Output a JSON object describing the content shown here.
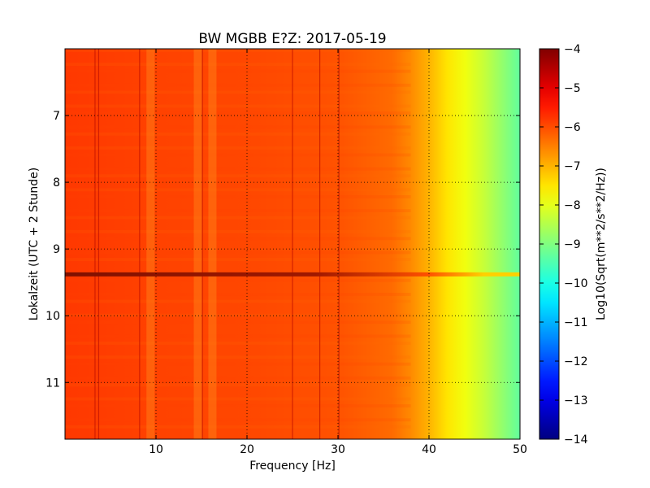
{
  "chart_data": {
    "type": "heatmap",
    "title": "BW MGBB E?Z: 2017-05-19",
    "xlabel": "Frequency [Hz]",
    "ylabel": "Lokalzeit (UTC + 2 Stunde)",
    "colorbar_label": "Log10(Sqrt(m**2/s**2/Hz))",
    "colormap": "jet",
    "xlim": [
      0,
      50
    ],
    "ylim": [
      11.85,
      6.0
    ],
    "y_inverted": true,
    "clim": [
      -14,
      -4
    ],
    "grid": true,
    "x_ticks": [
      10,
      20,
      30,
      40,
      50
    ],
    "x_tick_labels": [
      "10",
      "20",
      "30",
      "40",
      "50"
    ],
    "y_ticks": [
      7,
      8,
      9,
      10,
      11
    ],
    "y_tick_labels": [
      "7",
      "8",
      "9",
      "10",
      "11"
    ],
    "colorbar_ticks": [
      -4,
      -5,
      -6,
      -7,
      -8,
      -9,
      -10,
      -11,
      -12,
      -13,
      -14
    ],
    "colorbar_tick_labels": [
      "−4",
      "−5",
      "−6",
      "−7",
      "−8",
      "−9",
      "−10",
      "−11",
      "−12",
      "−13",
      "−14"
    ],
    "spectral_profile": {
      "frequency_hz": [
        0,
        10,
        20,
        30,
        36,
        38,
        40,
        42,
        44,
        46,
        48,
        50
      ],
      "log10_amplitude": [
        -5.8,
        -5.9,
        -5.95,
        -6.05,
        -6.3,
        -6.6,
        -7.0,
        -7.5,
        -7.9,
        -8.3,
        -8.8,
        -9.3
      ]
    },
    "features": {
      "broadband_event_time": 9.38,
      "broadband_event_level": -5.0,
      "vertical_lines_hz": [
        3.3,
        3.7,
        8.2,
        15.1,
        25.0,
        28.0,
        30.1
      ],
      "bright_columns_hz": [
        9.4,
        14.6,
        16.2
      ]
    }
  }
}
